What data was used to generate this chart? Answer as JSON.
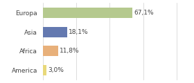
{
  "categories": [
    "Europa",
    "Asia",
    "Africa",
    "America"
  ],
  "values": [
    67.1,
    18.1,
    11.8,
    3.0
  ],
  "labels": [
    "67,1%",
    "18,1%",
    "11,8%",
    "3,0%"
  ],
  "bar_colors": [
    "#b5c98e",
    "#6479b0",
    "#e8b07a",
    "#e8d87a"
  ],
  "background_color": "#ffffff",
  "xlim": [
    0,
    110
  ],
  "label_fontsize": 6.5,
  "tick_fontsize": 6.5,
  "bar_height": 0.55
}
